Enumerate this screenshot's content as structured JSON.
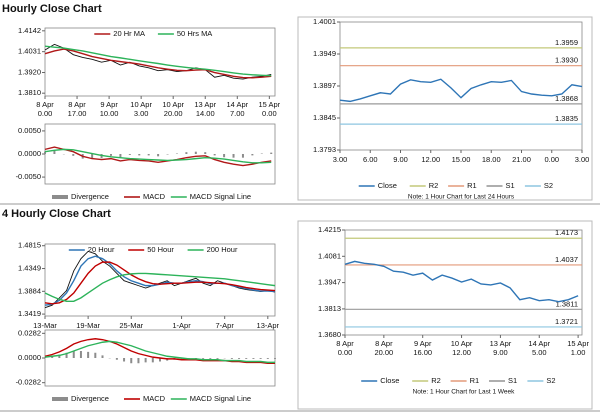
{
  "sections": [
    {
      "title": "Hourly Close Chart"
    },
    {
      "title": "4 Hourly Close Chart"
    }
  ],
  "chart_data": [
    {
      "type": "line",
      "legend": "top",
      "grid": false,
      "x": [
        0,
        5,
        10,
        15,
        20,
        25,
        30,
        35,
        40,
        45,
        50,
        55,
        60,
        65,
        70,
        75,
        80,
        85,
        90,
        95,
        100,
        105,
        110,
        115,
        120
      ],
      "xlim": [
        0,
        122
      ],
      "xticks": [
        {
          "value": 0,
          "label": [
            "8 Apr",
            "0.00"
          ]
        },
        {
          "value": 17,
          "label": [
            "8 Apr",
            "17.00"
          ]
        },
        {
          "value": 34,
          "label": [
            "9 Apr",
            "10.00"
          ]
        },
        {
          "value": 51,
          "label": [
            "10 Apr",
            "3.00"
          ]
        },
        {
          "value": 68,
          "label": [
            "10 Apr",
            "20.00"
          ]
        },
        {
          "value": 85,
          "label": [
            "13 Apr",
            "14.00"
          ]
        },
        {
          "value": 102,
          "label": [
            "14 Apr",
            "7.00"
          ]
        },
        {
          "value": 119,
          "label": [
            "15 Apr",
            "0.00"
          ]
        }
      ],
      "ylim": [
        1.3795,
        1.4157
      ],
      "yticks": [
        1.4142,
        1.4031,
        {
          "value": 1.392,
          "label": "1.3920"
        },
        {
          "value": 1.381,
          "label": "1.3810"
        }
      ],
      "series": [
        {
          "color": "#111111",
          "values": [
            1.404,
            1.407,
            1.405,
            1.4015,
            1.4,
            1.399,
            1.3975,
            1.3985,
            1.396,
            1.3975,
            1.3955,
            1.3945,
            1.393,
            1.3935,
            1.3925,
            1.393,
            1.3945,
            1.3935,
            1.3895,
            1.3905,
            1.389,
            1.3885,
            1.3895,
            1.39,
            1.391
          ]
        },
        {
          "name": "20 Hr MA",
          "color": "#b01818",
          "values": [
            1.402,
            1.4035,
            1.4045,
            1.4035,
            1.402,
            1.4005,
            1.3995,
            1.3985,
            1.3978,
            1.3972,
            1.3965,
            1.3955,
            1.3945,
            1.3938,
            1.3932,
            1.393,
            1.3933,
            1.3935,
            1.392,
            1.391,
            1.39,
            1.3893,
            1.3892,
            1.3895,
            1.39
          ]
        },
        {
          "name": "50 Hrs MA",
          "color": "#2db35a",
          "values": [
            1.406,
            1.4055,
            1.405,
            1.4042,
            1.4035,
            1.4025,
            1.4015,
            1.4005,
            1.3998,
            1.399,
            1.3982,
            1.3975,
            1.3968,
            1.396,
            1.3953,
            1.3947,
            1.3942,
            1.3938,
            1.3932,
            1.3925,
            1.3918,
            1.3912,
            1.3908,
            1.3905,
            1.3903
          ]
        }
      ]
    },
    {
      "type": "line",
      "legend": "bottom",
      "grid": false,
      "x": [
        0,
        5,
        10,
        15,
        20,
        25,
        30,
        35,
        40,
        45,
        50,
        55,
        60,
        65,
        70,
        75,
        80,
        85,
        90,
        95,
        100,
        105,
        110,
        115,
        120
      ],
      "xlim": [
        0,
        122
      ],
      "ylim": [
        -0.0065,
        0.0065
      ],
      "yticks": [
        {
          "value": 0.005,
          "label": "0.0050"
        },
        {
          "value": 0,
          "label": "0.0000"
        },
        {
          "value": -0.005,
          "label": "-0.0050"
        }
      ],
      "series": [
        {
          "name": "Divergence",
          "type": "bar",
          "color": "#8c8c8c",
          "values": [
            0.0005,
            0.0007,
            0,
            -0.0004,
            -0.001,
            -0.0011,
            -0.0009,
            -0.0004,
            -0.0007,
            -0.0002,
            -0.0003,
            -0.0003,
            -0.0005,
            -0.0001,
            0.0001,
            0.0004,
            0.0005,
            0.0004,
            -0.0003,
            -0.0007,
            -0.0008,
            -0.0008,
            -0.0003,
            0.0001,
            0.0003
          ]
        },
        {
          "name": "MACD",
          "color": "#b01818",
          "values": [
            0.001,
            0.0015,
            0.001,
            0.0005,
            -0.0005,
            -0.001,
            -0.0012,
            -0.001,
            -0.0015,
            -0.0012,
            -0.0014,
            -0.0015,
            -0.0018,
            -0.0015,
            -0.0012,
            -0.0008,
            -0.0005,
            -0.0004,
            -0.0012,
            -0.0018,
            -0.0022,
            -0.0025,
            -0.0022,
            -0.0018,
            -0.0015
          ]
        },
        {
          "name": "MACD Signal Line",
          "color": "#2db35a",
          "values": [
            0.0005,
            0.0008,
            0.001,
            0.0009,
            0.0005,
            0.0001,
            -0.0003,
            -0.0006,
            -0.0008,
            -0.001,
            -0.0011,
            -0.0012,
            -0.0013,
            -0.0014,
            -0.0013,
            -0.0012,
            -0.001,
            -0.0008,
            -0.0009,
            -0.0011,
            -0.0014,
            -0.0017,
            -0.0019,
            -0.0019,
            -0.0018
          ]
        }
      ]
    },
    {
      "type": "line",
      "legend": "bottom",
      "grid": false,
      "note": "Note: 1 Hour Chart for Last 24 Hours",
      "x": [
        0,
        1,
        2,
        3,
        4,
        5,
        6,
        7,
        8,
        9,
        10,
        11,
        12,
        13,
        14,
        15,
        16,
        17,
        18,
        19,
        20,
        21,
        22,
        23,
        24
      ],
      "xlim": [
        0,
        24
      ],
      "xticks": [
        {
          "value": 0,
          "label": "3.00"
        },
        {
          "value": 3,
          "label": "6.00"
        },
        {
          "value": 6,
          "label": "9.00"
        },
        {
          "value": 9,
          "label": "12.00"
        },
        {
          "value": 12,
          "label": "15.00"
        },
        {
          "value": 15,
          "label": "18.00"
        },
        {
          "value": 18,
          "label": "21.00"
        },
        {
          "value": 21,
          "label": "0.00"
        },
        {
          "value": 24,
          "label": "3.00"
        }
      ],
      "ylim": [
        1.3793,
        1.4001
      ],
      "yticks": [
        1.4001,
        1.3949,
        1.3897,
        1.3845,
        1.3793
      ],
      "series": [
        {
          "name": "Close",
          "color": "#2e75b6",
          "values": [
            1.3874,
            1.3872,
            1.3876,
            1.3881,
            1.3886,
            1.3884,
            1.39,
            1.3907,
            1.3904,
            1.3903,
            1.3908,
            1.3894,
            1.3878,
            1.3893,
            1.3899,
            1.3904,
            1.3903,
            1.3906,
            1.3888,
            1.3884,
            1.3882,
            1.3881,
            1.3884,
            1.3899,
            1.3896
          ]
        }
      ],
      "levels": [
        {
          "name": "R2",
          "color": "#c3c97a",
          "value": 1.3959
        },
        {
          "name": "R1",
          "color": "#e39a7a",
          "value": 1.393,
          "label": "1.3930"
        },
        {
          "name": "S1",
          "color": "#9a9a9a",
          "value": 1.3868
        },
        {
          "name": "S2",
          "color": "#8ec6e0",
          "value": 1.3835
        }
      ]
    },
    {
      "type": "line",
      "legend": "top",
      "grid": false,
      "x": [
        0,
        1,
        2,
        3,
        4,
        5,
        6,
        7,
        8,
        9,
        10,
        11,
        12,
        13,
        14,
        15,
        16,
        17,
        18,
        19,
        20,
        21,
        22,
        23,
        24,
        25,
        26,
        27,
        28,
        29,
        30,
        31,
        32
      ],
      "xlim": [
        0,
        32
      ],
      "xticks": [
        {
          "value": 0,
          "label": "13-Mar"
        },
        {
          "value": 6,
          "label": "19-Mar"
        },
        {
          "value": 12,
          "label": "25-Mar"
        },
        {
          "value": 19,
          "label": "1-Apr"
        },
        {
          "value": 25,
          "label": "7-Apr"
        },
        {
          "value": 31,
          "label": "13-Apr"
        }
      ],
      "ylim": [
        1.338,
        1.485
      ],
      "yticks": [
        1.4815,
        1.4349,
        1.3884,
        1.3419
      ],
      "series": [
        {
          "color": "#111111",
          "values": [
            1.355,
            1.36,
            1.375,
            1.39,
            1.43,
            1.455,
            1.47,
            1.465,
            1.45,
            1.44,
            1.425,
            1.41,
            1.405,
            1.4,
            1.395,
            1.4,
            1.405,
            1.41,
            1.4,
            1.405,
            1.41,
            1.415,
            1.405,
            1.4,
            1.41,
            1.405,
            1.4,
            1.395,
            1.392,
            1.39,
            1.388,
            1.39,
            1.387
          ]
        },
        {
          "name": "20 Hour",
          "color": "#2e75b6",
          "values": [
            1.36,
            1.362,
            1.37,
            1.385,
            1.41,
            1.44,
            1.455,
            1.46,
            1.455,
            1.445,
            1.43,
            1.418,
            1.41,
            1.405,
            1.4,
            1.4,
            1.403,
            1.407,
            1.405,
            1.405,
            1.408,
            1.41,
            1.408,
            1.404,
            1.405,
            1.405,
            1.4,
            1.397,
            1.394,
            1.391,
            1.389,
            1.389,
            1.388
          ]
        },
        {
          "name": "50 Hour",
          "color": "#c00000",
          "values": [
            1.365,
            1.363,
            1.365,
            1.372,
            1.385,
            1.405,
            1.425,
            1.44,
            1.448,
            1.448,
            1.442,
            1.432,
            1.422,
            1.414,
            1.408,
            1.404,
            1.403,
            1.404,
            1.405,
            1.405,
            1.406,
            1.407,
            1.407,
            1.406,
            1.405,
            1.404,
            1.402,
            1.399,
            1.396,
            1.394,
            1.392,
            1.391,
            1.39
          ]
        },
        {
          "name": "200 Hour",
          "color": "#2db35a",
          "values": [
            1.385,
            1.378,
            1.372,
            1.368,
            1.368,
            1.375,
            1.385,
            1.395,
            1.405,
            1.412,
            1.418,
            1.422,
            1.424,
            1.425,
            1.425,
            1.424,
            1.423,
            1.422,
            1.421,
            1.42,
            1.419,
            1.418,
            1.417,
            1.416,
            1.415,
            1.414,
            1.412,
            1.41,
            1.408,
            1.406,
            1.404,
            1.402,
            1.4
          ]
        }
      ]
    },
    {
      "type": "line",
      "legend": "bottom",
      "grid": false,
      "x": [
        0,
        1,
        2,
        3,
        4,
        5,
        6,
        7,
        8,
        9,
        10,
        11,
        12,
        13,
        14,
        15,
        16,
        17,
        18,
        19,
        20,
        21,
        22,
        23,
        24,
        25,
        26,
        27,
        28,
        29,
        30,
        31,
        32
      ],
      "xlim": [
        0,
        32
      ],
      "ylim": [
        -0.032,
        0.032
      ],
      "yticks": [
        0.0282,
        {
          "value": 0,
          "label": "0.0000"
        },
        -0.0282
      ],
      "series": [
        {
          "name": "Divergence",
          "type": "bar",
          "color": "#8c8c8c",
          "values": [
            0.001,
            0.002,
            0.004,
            0.006,
            0.008,
            0.008,
            0.007,
            0.006,
            0.003,
            0,
            -0.002,
            -0.004,
            -0.006,
            -0.006,
            -0.005,
            -0.005,
            -0.004,
            -0.003,
            -0.002,
            -0.002,
            -0.001,
            -0.001,
            -0.001,
            -0.001,
            -0.001,
            0,
            -0.001,
            -0.001,
            -0.001,
            -0.001,
            -0.001,
            -0.001,
            -0.001
          ]
        },
        {
          "name": "MACD",
          "color": "#c00000",
          "values": [
            0.002,
            0.004,
            0.007,
            0.011,
            0.016,
            0.019,
            0.021,
            0.022,
            0.021,
            0.019,
            0.016,
            0.012,
            0.008,
            0.005,
            0.003,
            0.001,
            0,
            -0.001,
            -0.001,
            -0.002,
            -0.002,
            -0.002,
            -0.003,
            -0.003,
            -0.003,
            -0.003,
            -0.004,
            -0.004,
            -0.005,
            -0.005,
            -0.005,
            -0.006,
            -0.006
          ]
        },
        {
          "name": "MACD Signal Line",
          "color": "#2db35a",
          "values": [
            0.001,
            0.002,
            0.003,
            0.005,
            0.008,
            0.011,
            0.014,
            0.016,
            0.018,
            0.019,
            0.018,
            0.016,
            0.014,
            0.011,
            0.008,
            0.006,
            0.004,
            0.002,
            0.001,
            0,
            -0.001,
            -0.001,
            -0.002,
            -0.002,
            -0.002,
            -0.003,
            -0.003,
            -0.003,
            -0.004,
            -0.004,
            -0.004,
            -0.005,
            -0.005
          ]
        }
      ]
    },
    {
      "type": "line",
      "legend": "bottom",
      "grid": false,
      "note": "Note: 1 Hour Chart for  Last 1 Week",
      "x": [
        0,
        5,
        10,
        15,
        20,
        25,
        30,
        35,
        40,
        45,
        50,
        55,
        60,
        65,
        70,
        75,
        80,
        85,
        90,
        95,
        100,
        105,
        110,
        115,
        120
      ],
      "xlim": [
        0,
        122
      ],
      "xticks": [
        {
          "value": 0,
          "label": [
            "8 Apr",
            "0.00"
          ]
        },
        {
          "value": 20,
          "label": [
            "8 Apr",
            "20.00"
          ]
        },
        {
          "value": 40,
          "label": [
            "9 Apr",
            "16.00"
          ]
        },
        {
          "value": 60,
          "label": [
            "10 Apr",
            "12.00"
          ]
        },
        {
          "value": 80,
          "label": [
            "13 Apr",
            "9.00"
          ]
        },
        {
          "value": 100,
          "label": [
            "14 Apr",
            "5.00"
          ]
        },
        {
          "value": 120,
          "label": [
            "15 Apr",
            "1.00"
          ]
        }
      ],
      "ylim": [
        1.368,
        1.4215
      ],
      "yticks": [
        1.4215,
        1.4081,
        1.3947,
        1.3813,
        {
          "value": 1.368,
          "label": "1.3680"
        }
      ],
      "series": [
        {
          "name": "Close",
          "color": "#2e75b6",
          "values": [
            1.404,
            1.4055,
            1.4045,
            1.404,
            1.403,
            1.4005,
            1.4,
            1.3985,
            1.3995,
            1.396,
            1.3985,
            1.397,
            1.395,
            1.3965,
            1.394,
            1.3935,
            1.3945,
            1.392,
            1.386,
            1.387,
            1.3855,
            1.386,
            1.385,
            1.386,
            1.388
          ]
        }
      ],
      "levels": [
        {
          "name": "R2",
          "color": "#c3c97a",
          "value": 1.4173
        },
        {
          "name": "R1",
          "color": "#e39a7a",
          "value": 1.4037
        },
        {
          "name": "S1",
          "color": "#9a9a9a",
          "value": 1.3811
        },
        {
          "name": "S2",
          "color": "#8ec6e0",
          "value": 1.3721
        }
      ]
    }
  ]
}
